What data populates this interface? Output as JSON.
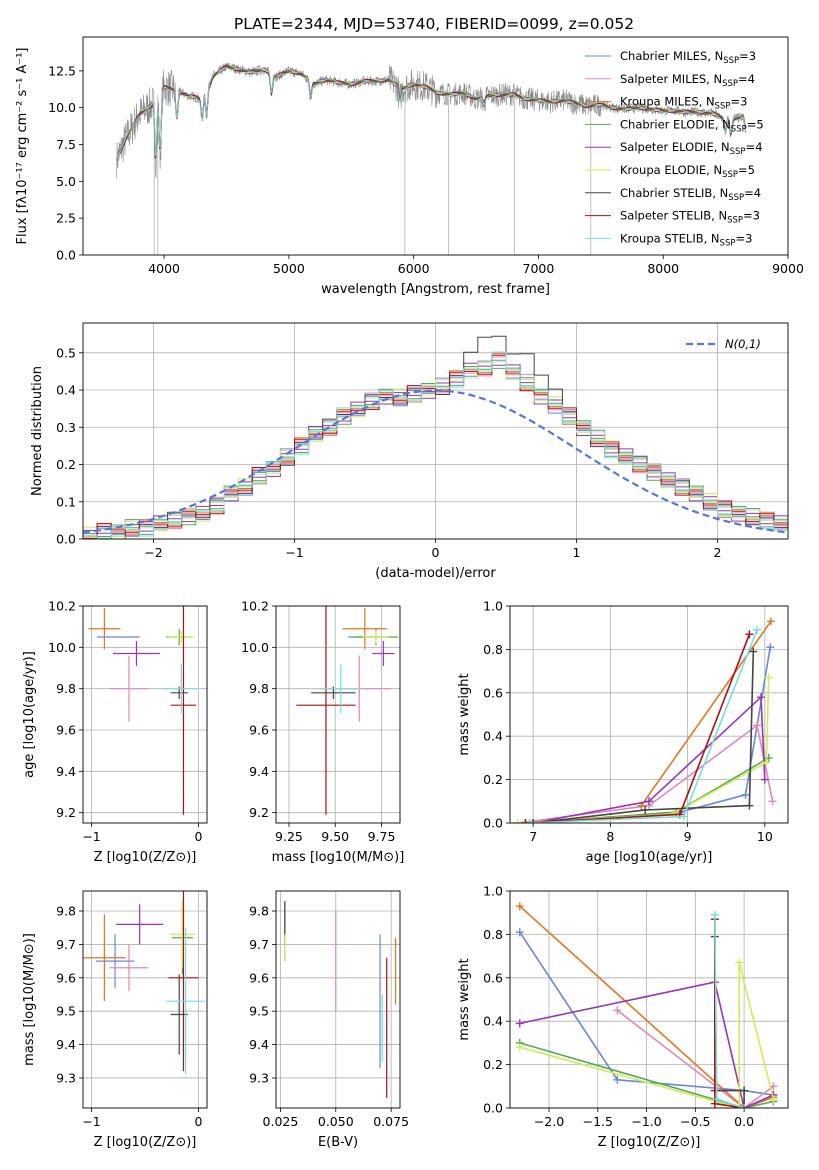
{
  "figure": {
    "title": "PLATE=2344, MJD=53740, FIBERID=0099, z=0.052"
  },
  "models": [
    {
      "name": "Chabrier MILES",
      "nssp": "3",
      "color": "#6688dd"
    },
    {
      "name": "Salpeter MILES",
      "nssp": "4",
      "color": "#e088bb"
    },
    {
      "name": "Kroupa MILES",
      "nssp": "3",
      "color": "#e07722"
    },
    {
      "name": "Chabrier ELODIE",
      "nssp": "5",
      "color": "#55aa55"
    },
    {
      "name": "Salpeter ELODIE",
      "nssp": "4",
      "color": "#9933bb"
    },
    {
      "name": "Kroupa ELODIE",
      "nssp": "5",
      "color": "#ccee55"
    },
    {
      "name": "Chabrier STELIB",
      "nssp": "4",
      "color": "#444444"
    },
    {
      "name": "Salpeter STELIB",
      "nssp": "3",
      "color": "#aa1111"
    },
    {
      "name": "Kroupa STELIB",
      "nssp": "3",
      "color": "#77dddd"
    }
  ],
  "chart_data": [
    {
      "id": "spectrum",
      "type": "line",
      "xlabel": "wavelength [Angstrom, rest frame]",
      "ylabel": "Flux [fλ10⁻¹⁷ erg cm⁻² s⁻¹ A⁻¹]",
      "xlim": [
        3350,
        9000
      ],
      "ylim": [
        0,
        14.8
      ],
      "xticks": [
        "4000",
        "5000",
        "6000",
        "7000",
        "8000",
        "9000"
      ],
      "yticks": [
        "0.0",
        "2.5",
        "5.0",
        "7.5",
        "10.0",
        "12.5"
      ],
      "legend_loc": "upper right",
      "series_observed_color": "#888888",
      "continuum": [
        [
          3620,
          6.5
        ],
        [
          3700,
          8.0
        ],
        [
          3800,
          9.5
        ],
        [
          3900,
          10.2
        ],
        [
          4000,
          11.4
        ],
        [
          4100,
          11.2
        ],
        [
          4200,
          10.8
        ],
        [
          4300,
          10.6
        ],
        [
          4400,
          12.2
        ],
        [
          4500,
          12.8
        ],
        [
          4600,
          12.6
        ],
        [
          4700,
          12.4
        ],
        [
          4800,
          12.6
        ],
        [
          4900,
          12.1
        ],
        [
          5000,
          12.5
        ],
        [
          5100,
          12.3
        ],
        [
          5200,
          11.6
        ],
        [
          5300,
          11.9
        ],
        [
          5400,
          11.7
        ],
        [
          5500,
          11.6
        ],
        [
          5600,
          11.8
        ],
        [
          5700,
          11.8
        ],
        [
          5800,
          11.9
        ],
        [
          5900,
          11.3
        ],
        [
          6000,
          11.6
        ],
        [
          6100,
          11.4
        ],
        [
          6200,
          11.0
        ],
        [
          6300,
          10.9
        ],
        [
          6400,
          11.0
        ],
        [
          6500,
          10.6
        ],
        [
          6600,
          10.8
        ],
        [
          6700,
          10.9
        ],
        [
          6800,
          10.9
        ],
        [
          6900,
          10.6
        ],
        [
          7000,
          10.5
        ],
        [
          7100,
          10.4
        ],
        [
          7200,
          10.5
        ],
        [
          7300,
          10.3
        ],
        [
          7400,
          10.1
        ],
        [
          7500,
          10.2
        ],
        [
          7600,
          10.0
        ],
        [
          7700,
          9.9
        ],
        [
          7800,
          10.0
        ],
        [
          7900,
          9.9
        ],
        [
          8000,
          9.8
        ],
        [
          8100,
          9.8
        ],
        [
          8200,
          9.7
        ],
        [
          8300,
          9.7
        ],
        [
          8400,
          9.6
        ],
        [
          8500,
          9.2
        ],
        [
          8600,
          9.3
        ],
        [
          8660,
          9.4
        ]
      ],
      "absorption_lines": [
        [
          3934,
          6.5
        ],
        [
          3968,
          6.8
        ],
        [
          4102,
          9.3
        ],
        [
          4305,
          9.2
        ],
        [
          4340,
          9.5
        ],
        [
          4861,
          10.9
        ],
        [
          5175,
          10.7
        ],
        [
          5890,
          10.5
        ],
        [
          6563,
          10.2
        ],
        [
          8498,
          8.4
        ],
        [
          8542,
          8.2
        ],
        [
          8662,
          8.4
        ]
      ],
      "spikes": [
        [
          3920,
          0
        ],
        [
          3950,
          0
        ],
        [
          5930,
          0
        ],
        [
          6280,
          0
        ],
        [
          6810,
          0
        ],
        [
          7420,
          0
        ]
      ]
    },
    {
      "id": "residual-histogram",
      "type": "bar",
      "xlabel": "(data-model)/error",
      "ylabel": "Normed distribution",
      "xlim": [
        -2.5,
        2.5
      ],
      "ylim": [
        0,
        0.58
      ],
      "xticks": [
        "−2",
        "−1",
        "0",
        "1",
        "2"
      ],
      "yticks": [
        "0.0",
        "0.1",
        "0.2",
        "0.3",
        "0.4",
        "0.5"
      ],
      "bin_width": 0.1,
      "bin_start": -2.5,
      "reference_curve": "N(0,1)",
      "reference_color": "#5577dd",
      "legend_loc": "upper right",
      "envelope": [
        0.01,
        0.02,
        0.02,
        0.03,
        0.03,
        0.04,
        0.05,
        0.06,
        0.07,
        0.09,
        0.12,
        0.14,
        0.17,
        0.19,
        0.22,
        0.25,
        0.28,
        0.3,
        0.33,
        0.35,
        0.37,
        0.38,
        0.38,
        0.39,
        0.4,
        0.41,
        0.43,
        0.45,
        0.46,
        0.48,
        0.45,
        0.42,
        0.38,
        0.36,
        0.33,
        0.3,
        0.27,
        0.24,
        0.22,
        0.2,
        0.18,
        0.16,
        0.14,
        0.12,
        0.1,
        0.08,
        0.07,
        0.06,
        0.05,
        0.04
      ]
    },
    {
      "id": "age-vs-Z",
      "type": "scatter",
      "xlabel": "Z [log10(Z/Z⊙)]",
      "ylabel": "age [log10(age/yr)]",
      "xlim": [
        -1.08,
        0.08
      ],
      "ylim": [
        9.15,
        10.2
      ],
      "xticks": [
        "−1",
        "0"
      ],
      "yticks": [
        "9.2",
        "9.4",
        "9.6",
        "9.8",
        "10.0",
        "10.2"
      ],
      "points": [
        {
          "x": -0.75,
          "y": 10.05,
          "xerr": 0.2,
          "yerr": 0.0,
          "series": "Chabrier MILES"
        },
        {
          "x": -0.65,
          "y": 9.8,
          "xerr": 0.18,
          "yerr": 0.16,
          "series": "Salpeter MILES"
        },
        {
          "x": -0.88,
          "y": 10.09,
          "xerr": 0.15,
          "yerr": 0.1,
          "series": "Kroupa MILES"
        },
        {
          "x": -0.18,
          "y": 10.05,
          "xerr": 0.12,
          "yerr": 0.04,
          "series": "Chabrier ELODIE"
        },
        {
          "x": -0.58,
          "y": 9.97,
          "xerr": 0.22,
          "yerr": 0.06,
          "series": "Salpeter ELODIE"
        },
        {
          "x": -0.16,
          "y": 10.05,
          "xerr": 0.12,
          "yerr": 0.03,
          "series": "Kroupa ELODIE"
        },
        {
          "x": -0.18,
          "y": 9.78,
          "xerr": 0.08,
          "yerr": 0.03,
          "series": "Chabrier STELIB"
        },
        {
          "x": -0.14,
          "y": 9.72,
          "xerr": 0.12,
          "yerr": 0.53,
          "series": "Salpeter STELIB"
        },
        {
          "x": -0.16,
          "y": 9.8,
          "xerr": 0.18,
          "yerr": 0.12,
          "series": "Kroupa STELIB"
        }
      ]
    },
    {
      "id": "age-vs-mass",
      "type": "scatter",
      "xlabel": "mass [log10(M/M⊙)]",
      "ylabel": "",
      "xlim": [
        9.18,
        9.85
      ],
      "ylim": [
        9.15,
        10.2
      ],
      "xticks": [
        "9.25",
        "9.50",
        "9.75"
      ],
      "yticks": [
        "9.2",
        "9.4",
        "9.6",
        "9.8",
        "10.0",
        "10.2"
      ],
      "points": [
        {
          "x": 9.65,
          "y": 10.05,
          "xerr": 0.08,
          "yerr": 0.0,
          "series": "Chabrier MILES"
        },
        {
          "x": 9.63,
          "y": 9.8,
          "xerr": 0.17,
          "yerr": 0.16,
          "series": "Salpeter MILES"
        },
        {
          "x": 9.66,
          "y": 10.09,
          "xerr": 0.12,
          "yerr": 0.1,
          "series": "Kroupa MILES"
        },
        {
          "x": 9.72,
          "y": 10.05,
          "xerr": 0.12,
          "yerr": 0.04,
          "series": "Chabrier ELODIE"
        },
        {
          "x": 9.76,
          "y": 9.97,
          "xerr": 0.06,
          "yerr": 0.06,
          "series": "Salpeter ELODIE"
        },
        {
          "x": 9.72,
          "y": 10.05,
          "xerr": 0.07,
          "yerr": 0.03,
          "series": "Kroupa ELODIE"
        },
        {
          "x": 9.49,
          "y": 9.78,
          "xerr": 0.12,
          "yerr": 0.03,
          "series": "Chabrier STELIB"
        },
        {
          "x": 9.45,
          "y": 9.72,
          "xerr": 0.16,
          "yerr": 0.53,
          "series": "Salpeter STELIB"
        },
        {
          "x": 9.53,
          "y": 9.8,
          "xerr": 0.12,
          "yerr": 0.12,
          "series": "Kroupa STELIB"
        }
      ]
    },
    {
      "id": "weight-vs-age",
      "type": "line",
      "xlabel": "age [log10(age/yr)]",
      "ylabel": "mass weight",
      "xlim": [
        6.7,
        10.3
      ],
      "ylim": [
        0,
        1
      ],
      "xticks": [
        "7",
        "8",
        "9",
        "10"
      ],
      "yticks": [
        "0.0",
        "0.2",
        "0.4",
        "0.6",
        "0.8",
        "1.0"
      ],
      "series": [
        {
          "name": "Chabrier MILES",
          "x": [
            8.9,
            9.75,
            10.07
          ],
          "y": [
            0.05,
            0.13,
            0.81
          ]
        },
        {
          "name": "Salpeter MILES",
          "x": [
            6.8,
            8.5,
            9.9,
            10.1
          ],
          "y": [
            0.0,
            0.08,
            0.45,
            0.1
          ]
        },
        {
          "name": "Kroupa MILES",
          "x": [
            8.4,
            10.08
          ],
          "y": [
            0.08,
            0.93
          ]
        },
        {
          "name": "Chabrier ELODIE",
          "x": [
            6.9,
            8.85,
            10.05
          ],
          "y": [
            0.0,
            0.05,
            0.3
          ]
        },
        {
          "name": "Salpeter ELODIE",
          "x": [
            7.0,
            8.5,
            9.95,
            10.0
          ],
          "y": [
            0.0,
            0.1,
            0.58,
            0.2
          ]
        },
        {
          "name": "Kroupa ELODIE",
          "x": [
            6.8,
            8.8,
            10.02,
            10.05
          ],
          "y": [
            0.0,
            0.04,
            0.28,
            0.67
          ]
        },
        {
          "name": "Chabrier STELIB",
          "x": [
            7.0,
            8.45,
            9.8,
            9.85
          ],
          "y": [
            0.0,
            0.06,
            0.08,
            0.79
          ]
        },
        {
          "name": "Salpeter STELIB",
          "x": [
            6.9,
            8.9,
            9.8
          ],
          "y": [
            0.0,
            0.04,
            0.87
          ]
        },
        {
          "name": "Kroupa STELIB",
          "x": [
            6.95,
            8.95,
            9.9
          ],
          "y": [
            0.0,
            0.03,
            0.89
          ]
        }
      ]
    },
    {
      "id": "mass-vs-Z",
      "type": "scatter",
      "xlabel": "Z [log10(Z/Z⊙)]",
      "ylabel": "mass [log10(M/M⊙)]",
      "xlim": [
        -1.08,
        0.08
      ],
      "ylim": [
        9.21,
        9.86
      ],
      "xticks": [
        "−1",
        "0"
      ],
      "yticks": [
        "9.3",
        "9.4",
        "9.5",
        "9.6",
        "9.7",
        "9.8"
      ],
      "points": [
        {
          "x": -0.78,
          "y": 9.65,
          "xerr": 0.18,
          "yerr": 0.08,
          "series": "Chabrier MILES"
        },
        {
          "x": -0.65,
          "y": 9.63,
          "xerr": 0.18,
          "yerr": 0.07,
          "series": "Salpeter MILES"
        },
        {
          "x": -0.88,
          "y": 9.66,
          "xerr": 0.2,
          "yerr": 0.13,
          "series": "Kroupa MILES"
        },
        {
          "x": -0.15,
          "y": 9.72,
          "xerr": 0.1,
          "yerr": 0.11,
          "series": "Chabrier ELODIE"
        },
        {
          "x": -0.55,
          "y": 9.76,
          "xerr": 0.22,
          "yerr": 0.06,
          "series": "Salpeter ELODIE"
        },
        {
          "x": -0.15,
          "y": 9.73,
          "xerr": 0.12,
          "yerr": 0.1,
          "series": "Kroupa ELODIE"
        },
        {
          "x": -0.18,
          "y": 9.49,
          "xerr": 0.08,
          "yerr": 0.12,
          "series": "Chabrier STELIB"
        },
        {
          "x": -0.14,
          "y": 9.6,
          "xerr": 0.14,
          "yerr": 0.28,
          "series": "Salpeter STELIB"
        },
        {
          "x": -0.12,
          "y": 9.53,
          "xerr": 0.18,
          "yerr": 0.22,
          "series": "Kroupa STELIB"
        }
      ]
    },
    {
      "id": "mass-vs-ebv",
      "type": "scatter",
      "xlabel": "E(B-V)",
      "ylabel": "",
      "xlim": [
        0.023,
        0.079
      ],
      "ylim": [
        9.21,
        9.86
      ],
      "xticks": [
        "0.025",
        "0.050",
        "0.075"
      ],
      "yticks": [
        "9.3",
        "9.4",
        "9.5",
        "9.6",
        "9.7",
        "9.8"
      ],
      "points": [
        {
          "x": 0.07,
          "y": 9.53,
          "xerr": 0.0,
          "yerr": 0.2,
          "series": "Chabrier MILES"
        },
        {
          "x": 0.05,
          "y": 9.65,
          "xerr": 0.0,
          "yerr": 0.15,
          "series": "Salpeter MILES"
        },
        {
          "x": 0.077,
          "y": 9.62,
          "xerr": 0.0,
          "yerr": 0.1,
          "series": "Kroupa MILES"
        },
        {
          "x": 0.027,
          "y": 9.73,
          "xerr": 0.0,
          "yerr": 0.08,
          "series": "Chabrier ELODIE"
        },
        {
          "x": 0.027,
          "y": 9.76,
          "xerr": 0.0,
          "yerr": 0.06,
          "series": "Salpeter ELODIE"
        },
        {
          "x": 0.027,
          "y": 9.74,
          "xerr": 0.0,
          "yerr": 0.09,
          "series": "Kroupa ELODIE"
        },
        {
          "x": 0.027,
          "y": 9.78,
          "xerr": 0.0,
          "yerr": 0.05,
          "series": "Chabrier STELIB"
        },
        {
          "x": 0.073,
          "y": 9.45,
          "xerr": 0.0,
          "yerr": 0.21,
          "series": "Salpeter STELIB"
        },
        {
          "x": 0.071,
          "y": 9.45,
          "xerr": 0.0,
          "yerr": 0.1,
          "series": "Kroupa STELIB"
        }
      ]
    },
    {
      "id": "weight-vs-Z",
      "type": "line",
      "xlabel": "Z [log10(Z/Z⊙)]",
      "ylabel": "mass weight",
      "xlim": [
        -2.4,
        0.45
      ],
      "ylim": [
        0,
        1
      ],
      "xticks": [
        "−2.0",
        "−1.5",
        "−1.0",
        "−0.5",
        "0.0"
      ],
      "yticks": [
        "0.0",
        "0.2",
        "0.4",
        "0.6",
        "0.8",
        "1.0"
      ],
      "series": [
        {
          "name": "Chabrier MILES",
          "x": [
            -2.3,
            -1.3,
            0.0,
            0.3
          ],
          "y": [
            0.81,
            0.13,
            0.08,
            0.06
          ]
        },
        {
          "name": "Salpeter MILES",
          "x": [
            -1.3,
            0.0,
            0.3
          ],
          "y": [
            0.45,
            0.0,
            0.1
          ]
        },
        {
          "name": "Kroupa MILES",
          "x": [
            -2.3,
            0.0,
            0.3
          ],
          "y": [
            0.93,
            0.0,
            0.05
          ]
        },
        {
          "name": "Chabrier ELODIE",
          "x": [
            -2.3,
            0.0,
            0.3
          ],
          "y": [
            0.3,
            0.0,
            0.03
          ]
        },
        {
          "name": "Salpeter ELODIE",
          "x": [
            -2.3,
            -0.3,
            0.0,
            0.3
          ],
          "y": [
            0.39,
            0.58,
            0.0,
            0.06
          ]
        },
        {
          "name": "Kroupa ELODIE",
          "x": [
            -2.3,
            -0.05,
            -0.05,
            0.3
          ],
          "y": [
            0.28,
            0.0,
            0.67,
            0.04
          ]
        },
        {
          "name": "Chabrier STELIB",
          "x": [
            -0.3,
            -0.3,
            0.0,
            0.0
          ],
          "y": [
            0.79,
            0.08,
            0.08,
            0.0
          ]
        },
        {
          "name": "Salpeter STELIB",
          "x": [
            -0.3,
            -0.3,
            0.0
          ],
          "y": [
            0.87,
            0.02,
            0.0
          ]
        },
        {
          "name": "Kroupa STELIB",
          "x": [
            -0.3,
            -0.28,
            0.0
          ],
          "y": [
            0.89,
            0.04,
            0.0
          ]
        }
      ]
    }
  ]
}
